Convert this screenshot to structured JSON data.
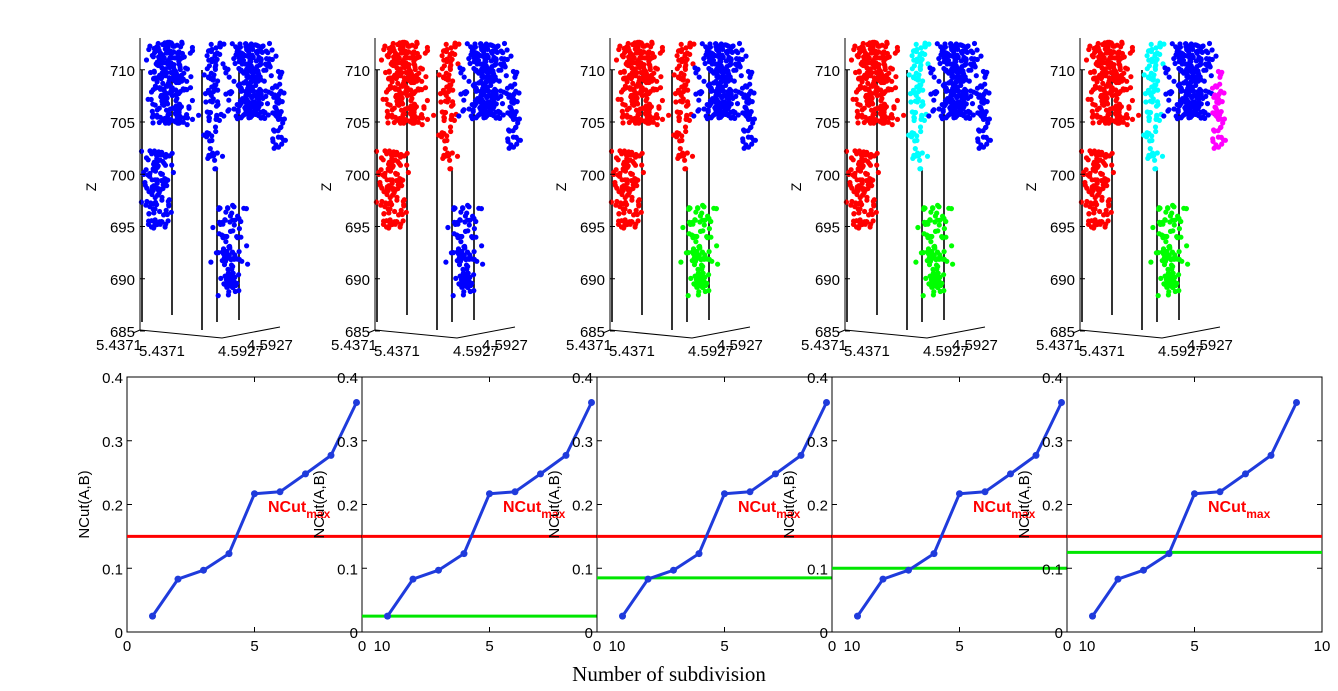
{
  "figure": {
    "shared_xlabel": "Number of subdivision"
  },
  "colors": {
    "blue": "#0000ff",
    "red": "#ff0000",
    "green": "#00ff00",
    "cyan": "#00ffff",
    "magenta": "#ff00ff",
    "threshold": "#ff0000",
    "cut": "#00e600",
    "curve": "#1f3bdc"
  },
  "chart_data": [
    {
      "type": "scatter",
      "panel": "3d-1",
      "ylabel": "Z",
      "yticks": [
        685,
        690,
        695,
        700,
        705,
        710
      ],
      "floor_labels": [
        "5.4371",
        "5.4371",
        "4.5927",
        "4.5927"
      ],
      "segments": [
        "blue"
      ]
    },
    {
      "type": "scatter",
      "panel": "3d-2",
      "ylabel": "Z",
      "yticks": [
        685,
        690,
        695,
        700,
        705,
        710
      ],
      "floor_labels": [
        "5.4371",
        "5.4371",
        "4.5927",
        "4.5927"
      ],
      "segments": [
        "red",
        "blue"
      ]
    },
    {
      "type": "scatter",
      "panel": "3d-3",
      "ylabel": "Z",
      "yticks": [
        685,
        690,
        695,
        700,
        705,
        710
      ],
      "floor_labels": [
        "5.4371",
        "5.4371",
        "4.5927",
        "4.5927"
      ],
      "segments": [
        "red",
        "blue",
        "green"
      ]
    },
    {
      "type": "scatter",
      "panel": "3d-4",
      "ylabel": "Z",
      "yticks": [
        685,
        690,
        695,
        700,
        705,
        710
      ],
      "floor_labels": [
        "5.4371",
        "5.4371",
        "4.5927",
        "4.5927"
      ],
      "segments": [
        "red",
        "cyan",
        "blue",
        "green"
      ]
    },
    {
      "type": "scatter",
      "panel": "3d-5",
      "ylabel": "Z",
      "yticks": [
        685,
        690,
        695,
        700,
        705,
        710
      ],
      "floor_labels": [
        "5.4371",
        "5.4371",
        "4.5927",
        "4.5927"
      ],
      "segments": [
        "red",
        "cyan",
        "blue",
        "green",
        "magenta"
      ]
    },
    {
      "type": "line",
      "ylabel": "NCut(A,B)",
      "x": [
        1,
        2,
        3,
        4,
        5,
        6,
        7,
        8,
        9
      ],
      "y": [
        0.025,
        0.083,
        0.097,
        0.123,
        0.217,
        0.22,
        0.248,
        0.277,
        0.36
      ],
      "xlim": [
        0,
        10
      ],
      "ylim": [
        0,
        0.4
      ],
      "xticks": [
        0,
        5,
        10
      ],
      "yticks": [
        0,
        0.1,
        0.2,
        0.3,
        0.4
      ],
      "xtick_labels": [
        "0",
        "5",
        "10"
      ],
      "ytick_labels": [
        "0",
        "0.1",
        "0.2",
        "0.3",
        "0.4"
      ],
      "threshold": 0.15,
      "threshold_label": "NCut",
      "threshold_sub": "max",
      "cut": null
    },
    {
      "type": "line",
      "ylabel": "NCut(A,B)",
      "x": [
        1,
        2,
        3,
        4,
        5,
        6,
        7,
        8,
        9
      ],
      "y": [
        0.025,
        0.083,
        0.097,
        0.123,
        0.217,
        0.22,
        0.248,
        0.277,
        0.36
      ],
      "xlim": [
        0,
        10
      ],
      "ylim": [
        0,
        0.4
      ],
      "xticks": [
        0,
        5,
        10
      ],
      "yticks": [
        0,
        0.1,
        0.2,
        0.3,
        0.4
      ],
      "xtick_labels": [
        "0",
        "5",
        "10"
      ],
      "ytick_labels": [
        "0",
        "0.1",
        "0.2",
        "0.3",
        "0.4"
      ],
      "threshold": 0.15,
      "threshold_label": "NCut",
      "threshold_sub": "max",
      "cut": 0.025
    },
    {
      "type": "line",
      "ylabel": "NCut(A,B)",
      "x": [
        1,
        2,
        3,
        4,
        5,
        6,
        7,
        8,
        9
      ],
      "y": [
        0.025,
        0.083,
        0.097,
        0.123,
        0.217,
        0.22,
        0.248,
        0.277,
        0.36
      ],
      "xlim": [
        0,
        10
      ],
      "ylim": [
        0,
        0.4
      ],
      "xticks": [
        0,
        5,
        10
      ],
      "yticks": [
        0,
        0.1,
        0.2,
        0.3,
        0.4
      ],
      "xtick_labels": [
        "0",
        "5",
        "10"
      ],
      "ytick_labels": [
        "0",
        "0.1",
        "0.2",
        "0.3",
        "0.4"
      ],
      "threshold": 0.15,
      "threshold_label": "NCut",
      "threshold_sub": "max",
      "cut": 0.085
    },
    {
      "type": "line",
      "ylabel": "NCut(A,B)",
      "x": [
        1,
        2,
        3,
        4,
        5,
        6,
        7,
        8,
        9
      ],
      "y": [
        0.025,
        0.083,
        0.097,
        0.123,
        0.217,
        0.22,
        0.248,
        0.277,
        0.36
      ],
      "xlim": [
        0,
        10
      ],
      "ylim": [
        0,
        0.4
      ],
      "xticks": [
        0,
        5,
        10
      ],
      "yticks": [
        0,
        0.1,
        0.2,
        0.3,
        0.4
      ],
      "xtick_labels": [
        "0",
        "5",
        "10"
      ],
      "ytick_labels": [
        "0",
        "0.1",
        "0.2",
        "0.3",
        "0.4"
      ],
      "threshold": 0.15,
      "threshold_label": "NCut",
      "threshold_sub": "max",
      "cut": 0.1
    },
    {
      "type": "line",
      "ylabel": "NCut(A,B)",
      "x": [
        1,
        2,
        3,
        4,
        5,
        6,
        7,
        8,
        9
      ],
      "y": [
        0.025,
        0.083,
        0.097,
        0.123,
        0.217,
        0.22,
        0.248,
        0.277,
        0.36
      ],
      "xlim": [
        0,
        10
      ],
      "ylim": [
        0,
        0.4
      ],
      "xticks": [
        0,
        5,
        10
      ],
      "yticks": [
        0,
        0.1,
        0.2,
        0.3,
        0.4
      ],
      "xtick_labels": [
        "0",
        "5",
        "10"
      ],
      "ytick_labels": [
        "0",
        "0.1",
        "0.2",
        "0.3",
        "0.4"
      ],
      "threshold": 0.15,
      "threshold_label": "NCut",
      "threshold_sub": "max",
      "cut": 0.125
    }
  ]
}
